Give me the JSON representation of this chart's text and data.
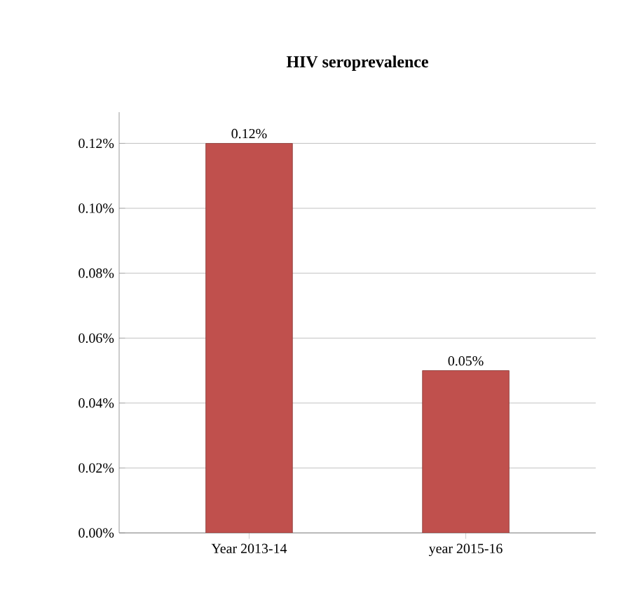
{
  "chart_data": {
    "type": "bar",
    "title": "HIV seroprevalence",
    "categories": [
      "Year 2013-14",
      "year 2015-16"
    ],
    "values": [
      0.12,
      0.05
    ],
    "value_labels": [
      "0.12%",
      "0.05%"
    ],
    "color": "#c0504d",
    "ylim": [
      0,
      0.12
    ],
    "yticks": [
      {
        "value": 0,
        "label": "0.00%"
      },
      {
        "value": 0.02,
        "label": "0.02%"
      },
      {
        "value": 0.04,
        "label": "0.04%"
      },
      {
        "value": 0.06,
        "label": "0.06%"
      },
      {
        "value": 0.08,
        "label": "0.08%"
      },
      {
        "value": 0.1,
        "label": "0.10%"
      },
      {
        "value": 0.12,
        "label": "0.12%"
      }
    ],
    "grid": "y"
  }
}
